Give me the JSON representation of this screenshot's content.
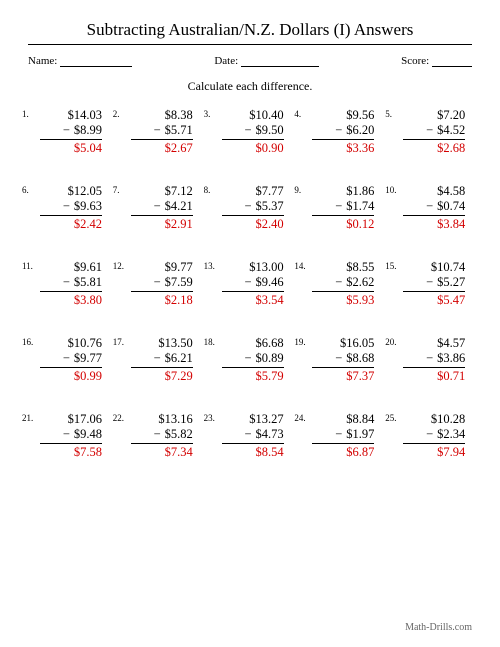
{
  "title": "Subtracting Australian/N.Z. Dollars (I) Answers",
  "meta": {
    "name_label": "Name:",
    "date_label": "Date:",
    "score_label": "Score:"
  },
  "instruction": "Calculate each difference.",
  "footer": "Math-Drills.com",
  "problems": [
    {
      "n": "1.",
      "a": "$14.03",
      "b": "$8.99",
      "ans": "$5.04"
    },
    {
      "n": "2.",
      "a": "$8.38",
      "b": "$5.71",
      "ans": "$2.67"
    },
    {
      "n": "3.",
      "a": "$10.40",
      "b": "$9.50",
      "ans": "$0.90"
    },
    {
      "n": "4.",
      "a": "$9.56",
      "b": "$6.20",
      "ans": "$3.36"
    },
    {
      "n": "5.",
      "a": "$7.20",
      "b": "$4.52",
      "ans": "$2.68"
    },
    {
      "n": "6.",
      "a": "$12.05",
      "b": "$9.63",
      "ans": "$2.42"
    },
    {
      "n": "7.",
      "a": "$7.12",
      "b": "$4.21",
      "ans": "$2.91"
    },
    {
      "n": "8.",
      "a": "$7.77",
      "b": "$5.37",
      "ans": "$2.40"
    },
    {
      "n": "9.",
      "a": "$1.86",
      "b": "$1.74",
      "ans": "$0.12"
    },
    {
      "n": "10.",
      "a": "$4.58",
      "b": "$0.74",
      "ans": "$3.84"
    },
    {
      "n": "11.",
      "a": "$9.61",
      "b": "$5.81",
      "ans": "$3.80"
    },
    {
      "n": "12.",
      "a": "$9.77",
      "b": "$7.59",
      "ans": "$2.18"
    },
    {
      "n": "13.",
      "a": "$13.00",
      "b": "$9.46",
      "ans": "$3.54"
    },
    {
      "n": "14.",
      "a": "$8.55",
      "b": "$2.62",
      "ans": "$5.93"
    },
    {
      "n": "15.",
      "a": "$10.74",
      "b": "$5.27",
      "ans": "$5.47"
    },
    {
      "n": "16.",
      "a": "$10.76",
      "b": "$9.77",
      "ans": "$0.99"
    },
    {
      "n": "17.",
      "a": "$13.50",
      "b": "$6.21",
      "ans": "$7.29"
    },
    {
      "n": "18.",
      "a": "$6.68",
      "b": "$0.89",
      "ans": "$5.79"
    },
    {
      "n": "19.",
      "a": "$16.05",
      "b": "$8.68",
      "ans": "$7.37"
    },
    {
      "n": "20.",
      "a": "$4.57",
      "b": "$3.86",
      "ans": "$0.71"
    },
    {
      "n": "21.",
      "a": "$17.06",
      "b": "$9.48",
      "ans": "$7.58"
    },
    {
      "n": "22.",
      "a": "$13.16",
      "b": "$5.82",
      "ans": "$7.34"
    },
    {
      "n": "23.",
      "a": "$13.27",
      "b": "$4.73",
      "ans": "$8.54"
    },
    {
      "n": "24.",
      "a": "$8.84",
      "b": "$1.97",
      "ans": "$6.87"
    },
    {
      "n": "25.",
      "a": "$10.28",
      "b": "$2.34",
      "ans": "$7.94"
    }
  ]
}
